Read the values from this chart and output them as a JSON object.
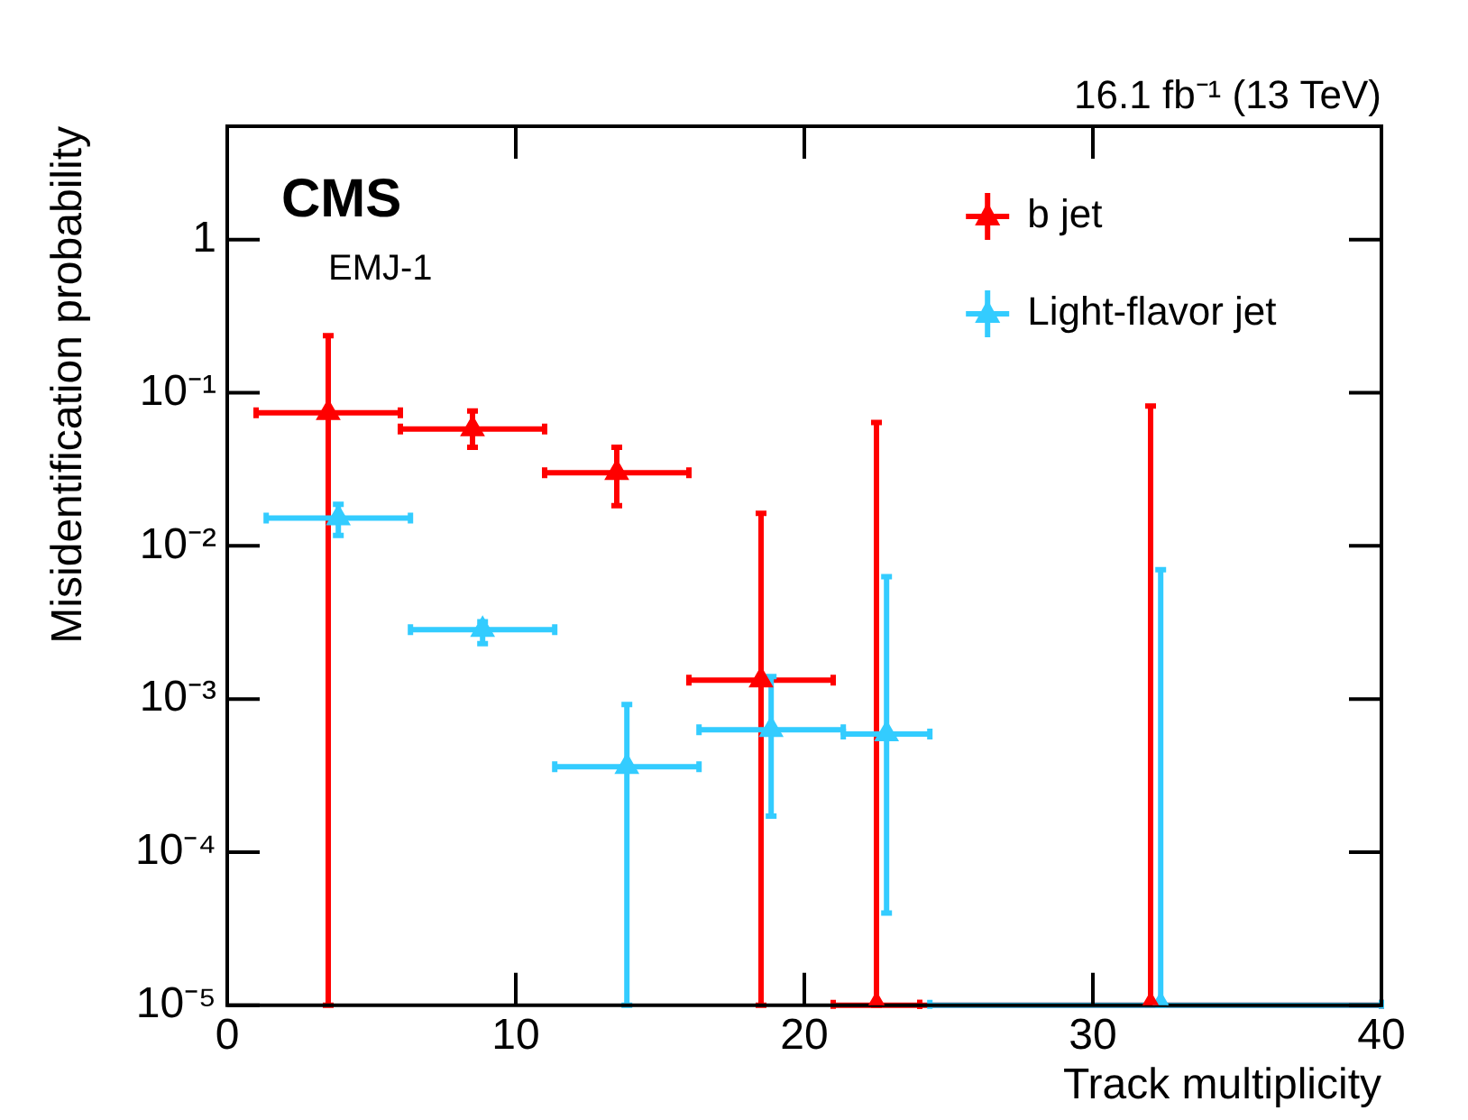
{
  "chart_data": {
    "type": "scatter",
    "xlabel": "Track multiplicity",
    "ylabel": "Misidentification probability",
    "annotations": [
      "CMS",
      "EMJ-1",
      "16.1 fb⁻¹ (13 TeV)"
    ],
    "series": [
      {
        "name": "b jet",
        "color": "#ff0000",
        "x": [
          3.5,
          8.5,
          13.5,
          18.5,
          22.5,
          32
        ],
        "values": [
          0.074,
          0.058,
          0.03,
          0.00133,
          1e-05,
          1e-05
        ],
        "errors": [
          [
            1e-05,
            0.236
          ],
          [
            0.044,
            0.076
          ],
          [
            0.0183,
            0.044
          ],
          [
            1e-05,
            0.0163
          ],
          [
            1e-05,
            0.064
          ],
          [
            1e-05,
            0.082
          ]
        ],
        "xerrors": [
          [
            1,
            6
          ],
          [
            6,
            11
          ],
          [
            11,
            16
          ],
          [
            16,
            21
          ],
          [
            21,
            24
          ],
          [
            24,
            40
          ]
        ]
      },
      {
        "name": "Light-flavor jet",
        "color": "#33ccff",
        "x": [
          3.85,
          8.85,
          13.85,
          18.85,
          22.85,
          32.35
        ],
        "values": [
          0.0152,
          0.00284,
          0.000361,
          0.00063,
          0.00059,
          1e-05
        ],
        "errors": [
          [
            0.0117,
            0.0187
          ],
          [
            0.0023,
            0.0032
          ],
          [
            1e-05,
            0.00092
          ],
          [
            0.000172,
            0.0014
          ],
          [
            4e-05,
            0.0063
          ],
          [
            1e-05,
            0.007
          ]
        ],
        "xerrors": [
          [
            1.35,
            6.35
          ],
          [
            6.35,
            11.35
          ],
          [
            11.35,
            16.35
          ],
          [
            16.35,
            21.35
          ],
          [
            21.35,
            24.35
          ],
          [
            24.35,
            40
          ]
        ]
      }
    ],
    "xlim": [
      0,
      40
    ],
    "xticks": [
      0,
      10,
      20,
      30,
      40
    ],
    "ylim": [
      1e-05,
      5.5
    ],
    "yticks": [
      {
        "value": 1e-05,
        "label": "10⁻⁵"
      },
      {
        "value": 0.0001,
        "label": "10⁻⁴"
      },
      {
        "value": 0.001,
        "label": "10⁻³"
      },
      {
        "value": 0.01,
        "label": "10⁻²"
      },
      {
        "value": 0.1,
        "label": "10⁻¹"
      },
      1
    ],
    "log": true,
    "grid": false,
    "legend": "top right",
    "marker": "triangle"
  }
}
